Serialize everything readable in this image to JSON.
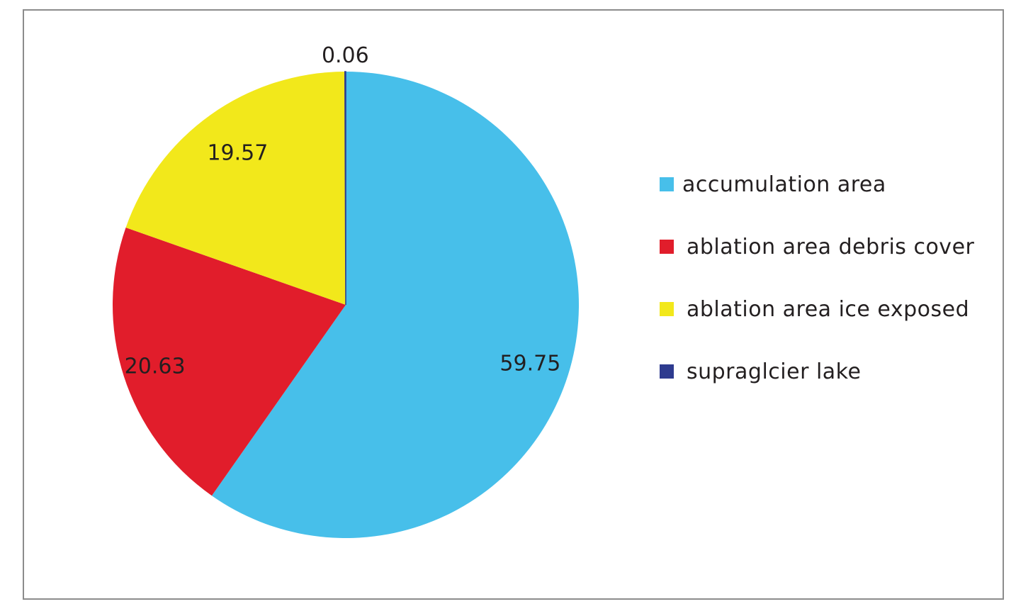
{
  "chart_data": {
    "type": "pie",
    "title": "",
    "categories": [
      "accumulation area",
      "ablation area debris cover",
      "ablation area ice exposed",
      "supraglcier lake"
    ],
    "values": [
      59.75,
      20.63,
      19.57,
      0.06
    ],
    "data_labels": [
      "59.75",
      "20.63",
      "19.57",
      "0.06"
    ],
    "colors": [
      "#47bfea",
      "#e11d2b",
      "#f2e81b",
      "#2e3b8f"
    ],
    "start_angle": "12 o'clock, clockwise",
    "legend_position": "right"
  }
}
